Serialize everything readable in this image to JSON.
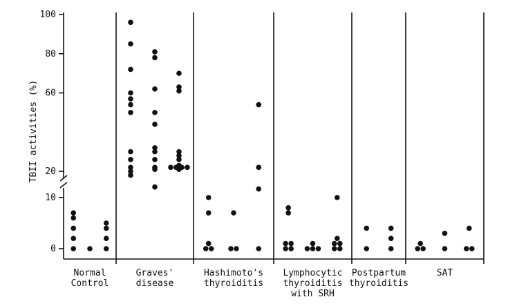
{
  "chart_data": {
    "type": "scatter",
    "ylabel": "TBII activities (%)",
    "axis_break": {
      "lower_range": [
        0,
        10
      ],
      "upper_range": [
        20,
        100
      ]
    },
    "yticks": [
      "0",
      "10",
      "20",
      "60",
      "80",
      "100"
    ],
    "groups": [
      {
        "label_lines": [
          "Normal",
          "Control"
        ],
        "columns": [
          [
            0,
            2,
            4,
            6,
            7
          ],
          [
            0
          ],
          [
            0,
            2,
            4,
            5
          ]
        ]
      },
      {
        "label_lines": [
          "Graves'",
          "disease"
        ],
        "columns": [
          [
            18,
            20,
            22,
            26,
            30,
            50,
            54,
            57,
            60,
            72,
            85,
            96
          ],
          [
            12,
            21,
            22,
            26,
            30,
            32,
            44,
            50,
            62,
            78,
            81
          ],
          [
            21,
            22,
            22,
            22,
            22,
            23,
            26,
            28,
            30,
            61,
            63,
            70
          ]
        ]
      },
      {
        "label_lines": [
          "Hashimoto's",
          "thyroiditis"
        ],
        "columns": [
          [
            0,
            0,
            1,
            7,
            10
          ],
          [
            0,
            0,
            7
          ],
          [
            0,
            11,
            22,
            54
          ]
        ]
      },
      {
        "label_lines": [
          "Lymphocytic",
          "thyroiditis",
          "with SRH"
        ],
        "columns": [
          [
            0,
            0,
            1,
            1,
            7,
            8
          ],
          [
            0,
            0,
            0,
            1
          ],
          [
            0,
            0,
            1,
            1,
            2,
            10
          ]
        ]
      },
      {
        "label_lines": [
          "Postpartum",
          "thyroiditis"
        ],
        "columns": [
          [
            0,
            4
          ],
          [
            0,
            2,
            4
          ]
        ]
      },
      {
        "label_lines": [
          "SAT"
        ],
        "columns": [
          [
            0,
            0,
            1
          ],
          [
            0,
            3
          ],
          [
            0,
            0,
            4
          ]
        ]
      }
    ]
  }
}
